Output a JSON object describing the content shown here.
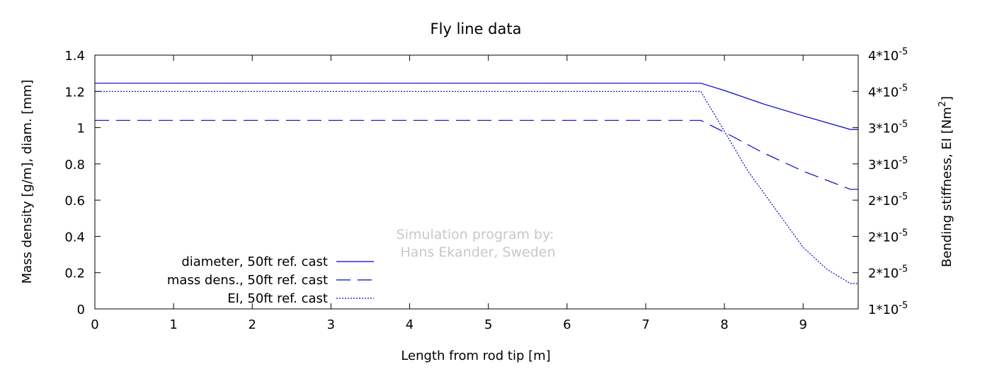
{
  "chart_data": {
    "type": "line",
    "title": "Fly line data",
    "xlabel": "Length from rod tip [m]",
    "ylabel": "Mass density [g/m], diam. [mm]",
    "y2label": "Bending stiffness, EI [Nm²]",
    "xlim": [
      0,
      9.7
    ],
    "ylim": [
      0,
      1.4
    ],
    "y2lim": [
      0.5,
      4.0
    ],
    "x_ticks": [
      "0",
      "1",
      "2",
      "3",
      "4",
      "5",
      "6",
      "7",
      "8",
      "9"
    ],
    "y_ticks": [
      "0",
      "0.2",
      "0.4",
      "0.6",
      "0.8",
      "1",
      "1.2",
      "1.4"
    ],
    "y2_ticks": [
      {
        "value": 0.5,
        "mantissa": "1*10",
        "exp": "-5"
      },
      {
        "value": 1.0,
        "mantissa": "2*10",
        "exp": "-5"
      },
      {
        "value": 1.5,
        "mantissa": "2*10",
        "exp": "-5"
      },
      {
        "value": 2.0,
        "mantissa": "2*10",
        "exp": "-5"
      },
      {
        "value": 2.5,
        "mantissa": "3*10",
        "exp": "-5"
      },
      {
        "value": 3.0,
        "mantissa": "3*10",
        "exp": "-5"
      },
      {
        "value": 3.5,
        "mantissa": "4*10",
        "exp": "-5"
      },
      {
        "value": 4.0,
        "mantissa": "4*10",
        "exp": "-5"
      }
    ],
    "grid": false,
    "legend_position": "bottom-left",
    "series": [
      {
        "name": "diameter, 50ft ref. cast",
        "axis": "y",
        "style": "solid",
        "color": "#0000cc",
        "x": [
          0,
          7.7,
          8.0,
          8.5,
          9.0,
          9.6,
          9.7
        ],
        "y": [
          1.245,
          1.245,
          1.205,
          1.13,
          1.065,
          0.99,
          0.99
        ]
      },
      {
        "name": "mass dens., 50ft ref. cast",
        "axis": "y",
        "style": "dashed",
        "color": "#0000cc",
        "x": [
          0,
          7.7,
          8.0,
          8.5,
          9.0,
          9.6,
          9.7
        ],
        "y": [
          1.04,
          1.04,
          0.975,
          0.86,
          0.76,
          0.66,
          0.66
        ]
      },
      {
        "name": "EI, 50ft ref. cast",
        "axis": "y2",
        "style": "dotted",
        "color": "#0000cc",
        "x": [
          0,
          7.7,
          8.0,
          8.3,
          8.6,
          9.0,
          9.3,
          9.6,
          9.7
        ],
        "y": [
          3.5,
          3.5,
          2.95,
          2.4,
          1.95,
          1.35,
          1.05,
          0.85,
          0.85
        ]
      }
    ]
  },
  "watermark": {
    "line1": "Simulation program by:",
    "line2": "Hans Ekander, Sweden"
  }
}
